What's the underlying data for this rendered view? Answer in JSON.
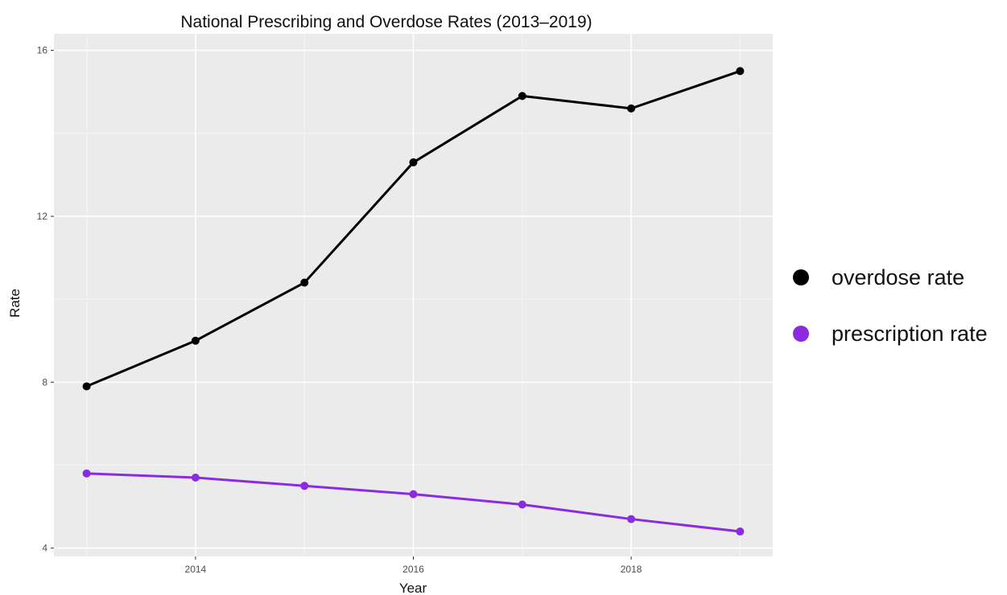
{
  "chart_data": {
    "type": "line",
    "title": "National Prescribing and Overdose Rates (2013–2019)",
    "xlabel": "Year",
    "ylabel": "Rate",
    "x": [
      2013,
      2014,
      2015,
      2016,
      2017,
      2018,
      2019
    ],
    "xlim": [
      2012.7,
      2019.3
    ],
    "ylim": [
      3.8,
      16.4
    ],
    "x_ticks": [
      2014,
      2016,
      2018
    ],
    "y_ticks": [
      4,
      8,
      12,
      16
    ],
    "x_tick_labels": [
      "2014",
      "2016",
      "2018"
    ],
    "y_tick_labels": [
      "4",
      "8",
      "12",
      "16"
    ],
    "grid": true,
    "legend_position": "right",
    "series": [
      {
        "name": "overdose rate",
        "color": "#000000",
        "values": [
          7.9,
          9.0,
          10.4,
          13.3,
          14.9,
          14.6,
          15.5
        ]
      },
      {
        "name": "prescription rate",
        "color": "#8a2be2",
        "values": [
          5.8,
          5.7,
          5.5,
          5.3,
          5.05,
          4.7,
          4.4
        ]
      }
    ]
  }
}
